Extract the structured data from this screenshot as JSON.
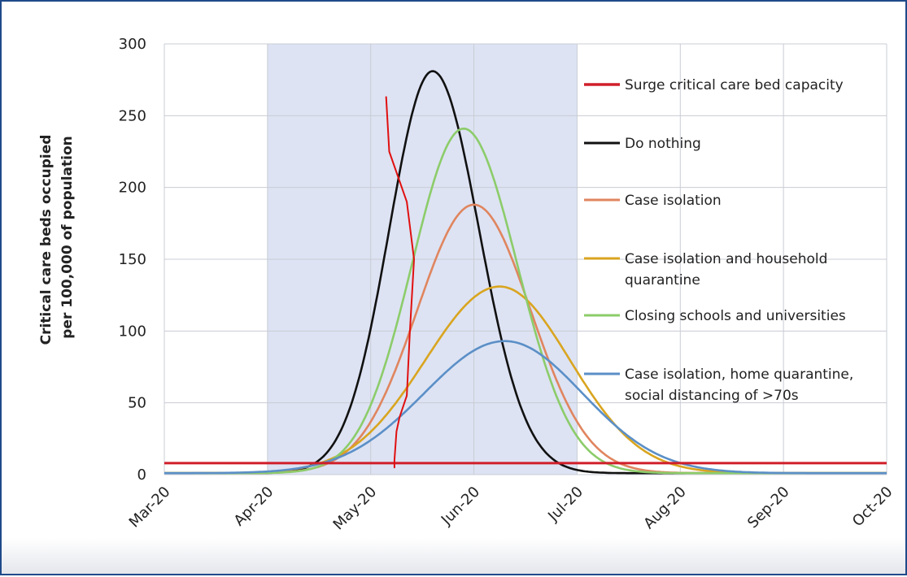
{
  "chart_data": {
    "type": "line",
    "title": "",
    "ylabel_lines": [
      "Critical care beds occupied",
      "per 100,000 of population"
    ],
    "xlabel": "",
    "x_ticks": [
      "Mar-20",
      "Apr-20",
      "May-20",
      "Jun-20",
      "Jul-20",
      "Aug-20",
      "Sep-20",
      "Oct-20"
    ],
    "y_ticks": [
      "0",
      "50",
      "100",
      "150",
      "200",
      "250",
      "300"
    ],
    "ylim": [
      0,
      300
    ],
    "x_domain": [
      0,
      7
    ],
    "grid": true,
    "shaded_period": {
      "from": 1,
      "to": 4,
      "color": "#dde3f3"
    },
    "legend_position": "right",
    "series": [
      {
        "name": "Surge critical care bed capacity",
        "color": "#d01f2a",
        "kind": "constant",
        "value": 8
      },
      {
        "name": "Do nothing",
        "color": "#111111",
        "kind": "peak",
        "peak_x": 2.6,
        "peak_y": 281,
        "width_left": 0.42,
        "width_right": 0.45
      },
      {
        "name": "Case isolation",
        "color": "#e0855f",
        "kind": "peak",
        "peak_x": 3.0,
        "peak_y": 188,
        "width_left": 0.55,
        "width_right": 0.55
      },
      {
        "name": "Case isolation and household quarantine",
        "name_lines": [
          "Case isolation and household",
          "quarantine"
        ],
        "color": "#d9a520",
        "kind": "peak",
        "peak_x": 3.25,
        "peak_y": 131,
        "width_left": 0.72,
        "width_right": 0.68
      },
      {
        "name": "Closing schools and universities",
        "color": "#8ccc6a",
        "kind": "peak",
        "peak_x": 2.9,
        "peak_y": 241,
        "width_left": 0.5,
        "width_right": 0.52
      },
      {
        "name": "Case isolation, home quarantine, social distancing of >70s",
        "name_lines": [
          "Case isolation, home quarantine,",
          "social distancing of >70s"
        ],
        "color": "#5b8fc7",
        "kind": "peak",
        "peak_x": 3.3,
        "peak_y": 93,
        "width_left": 0.78,
        "width_right": 0.75
      }
    ],
    "annotation": {
      "kind": "hand-drawn red line",
      "color": "#e01010",
      "points": [
        [
          2.15,
          263
        ],
        [
          2.18,
          225
        ],
        [
          2.35,
          190
        ],
        [
          2.42,
          150
        ],
        [
          2.38,
          100
        ],
        [
          2.35,
          55
        ],
        [
          2.28,
          40
        ],
        [
          2.25,
          30
        ],
        [
          2.23,
          10
        ],
        [
          2.23,
          5
        ]
      ]
    }
  }
}
